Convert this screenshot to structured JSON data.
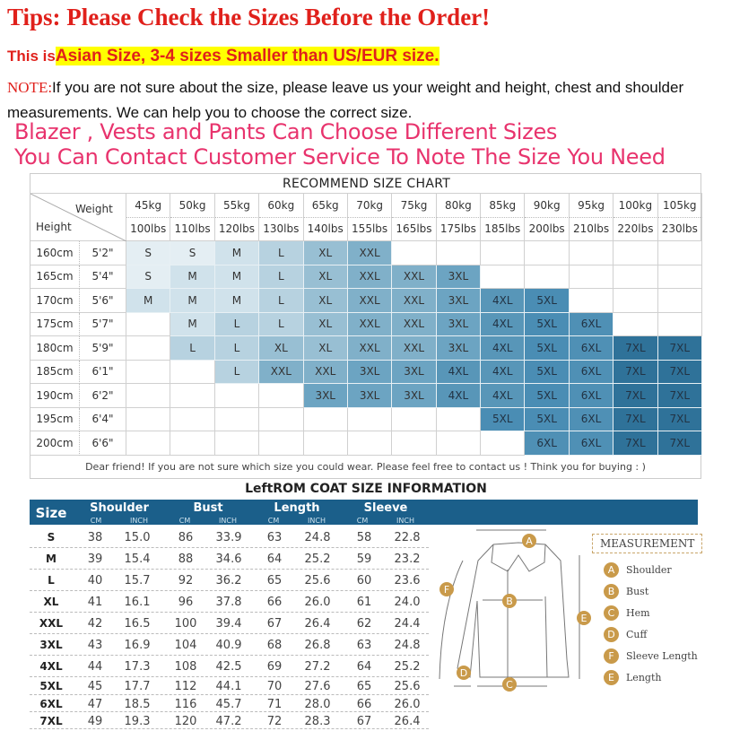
{
  "header": {
    "tips": "Tips: Please Check the Sizes Before the Order!",
    "asian_prefix": "This is",
    "asian_highlight": "Asian Size, 3-4 sizes Smaller than US/EUR size.",
    "note_label": "NOTE:",
    "note_text": "If you are not sure about the size, please leave us your weight and height, chest and shoulder measurements. We can help you to choose the correct size.",
    "pink_line_1": "Blazer , Vests and Pants Can Choose Different Sizes",
    "pink_line_2": "You Can Contact Customer Service To Note The Size You Need"
  },
  "colors": {
    "tips_red": "#e0201b",
    "highlight": "#ffff00",
    "pink": "#e8336d",
    "coat_header": "#1b5f8a",
    "badge": "#c99a4a"
  },
  "recommend": {
    "title": "RECOMMEND SIZE CHART",
    "weight_label": "Weight",
    "height_label": "Height",
    "kg": [
      "45kg",
      "50kg",
      "55kg",
      "60kg",
      "65kg",
      "70kg",
      "75kg",
      "80kg",
      "85kg",
      "90kg",
      "95kg",
      "100kg",
      "105kg"
    ],
    "lbs": [
      "100lbs",
      "110lbs",
      "120lbs",
      "130lbs",
      "140lbs",
      "155lbs",
      "165lbs",
      "175lbs",
      "185lbs",
      "200lbs",
      "210lbs",
      "220lbs",
      "230lbs"
    ],
    "rows": [
      {
        "cm": "160cm",
        "ft": "5'2\"",
        "sizes": [
          "S",
          "S",
          "M",
          "L",
          "XL",
          "XXL",
          "",
          "",
          "",
          "",
          "",
          "",
          ""
        ]
      },
      {
        "cm": "165cm",
        "ft": "5'4\"",
        "sizes": [
          "S",
          "M",
          "M",
          "L",
          "XL",
          "XXL",
          "XXL",
          "3XL",
          "",
          "",
          "",
          "",
          ""
        ]
      },
      {
        "cm": "170cm",
        "ft": "5'6\"",
        "sizes": [
          "M",
          "M",
          "M",
          "L",
          "XL",
          "XXL",
          "XXL",
          "3XL",
          "4XL",
          "5XL",
          "",
          "",
          ""
        ]
      },
      {
        "cm": "175cm",
        "ft": "5'7\"",
        "sizes": [
          "",
          "M",
          "L",
          "L",
          "XL",
          "XXL",
          "XXL",
          "3XL",
          "4XL",
          "5XL",
          "6XL",
          "",
          ""
        ]
      },
      {
        "cm": "180cm",
        "ft": "5'9\"",
        "sizes": [
          "",
          "L",
          "L",
          "XL",
          "XL",
          "XXL",
          "XXL",
          "3XL",
          "4XL",
          "5XL",
          "6XL",
          "7XL",
          "7XL"
        ]
      },
      {
        "cm": "185cm",
        "ft": "6'1\"",
        "sizes": [
          "",
          "",
          "L",
          "XXL",
          "XXL",
          "3XL",
          "3XL",
          "4XL",
          "4XL",
          "5XL",
          "6XL",
          "7XL",
          "7XL"
        ]
      },
      {
        "cm": "190cm",
        "ft": "6'2\"",
        "sizes": [
          "",
          "",
          "",
          "",
          "3XL",
          "3XL",
          "3XL",
          "4XL",
          "4XL",
          "5XL",
          "6XL",
          "7XL",
          "7XL"
        ]
      },
      {
        "cm": "195cm",
        "ft": "6'4\"",
        "sizes": [
          "",
          "",
          "",
          "",
          "",
          "",
          "",
          "",
          "5XL",
          "5XL",
          "6XL",
          "7XL",
          "7XL"
        ]
      },
      {
        "cm": "200cm",
        "ft": "6'6\"",
        "sizes": [
          "",
          "",
          "",
          "",
          "",
          "",
          "",
          "",
          "",
          "6XL",
          "6XL",
          "7XL",
          "7XL"
        ]
      }
    ],
    "size_colors": {
      "S": "#e4eef3",
      "M": "#d0e2eb",
      "L": "#b7d2e0",
      "XL": "#98bfd3",
      "XXL": "#80b0c9",
      "3XL": "#6ca4c2",
      "4XL": "#5896b8",
      "5XL": "#4a8db4",
      "6XL": "#4f90b5",
      "7XL": "#2f7299"
    },
    "footer": "Dear friend! If you are not sure which size you could wear. Please feel free to contact us ! Think you for buying : )"
  },
  "coat": {
    "title": "LeftROM COAT SIZE INFORMATION",
    "size_label": "Size",
    "groups": [
      "Shoulder",
      "Bust",
      "Length",
      "Sleeve"
    ],
    "unit_cm": "CM",
    "unit_inch": "INCH",
    "rows": [
      [
        "S",
        "38",
        "15.0",
        "86",
        "33.9",
        "63",
        "24.8",
        "58",
        "22.8"
      ],
      [
        "M",
        "39",
        "15.4",
        "88",
        "34.6",
        "64",
        "25.2",
        "59",
        "23.2"
      ],
      [
        "L",
        "40",
        "15.7",
        "92",
        "36.2",
        "65",
        "25.6",
        "60",
        "23.6"
      ],
      [
        "XL",
        "41",
        "16.1",
        "96",
        "37.8",
        "66",
        "26.0",
        "61",
        "24.0"
      ],
      [
        "XXL",
        "42",
        "16.5",
        "100",
        "39.4",
        "67",
        "26.4",
        "62",
        "24.4"
      ],
      [
        "3XL",
        "43",
        "16.9",
        "104",
        "40.9",
        "68",
        "26.8",
        "63",
        "24.8"
      ],
      [
        "4XL",
        "44",
        "17.3",
        "108",
        "42.5",
        "69",
        "27.2",
        "64",
        "25.2"
      ],
      [
        "5XL",
        "45",
        "17.7",
        "112",
        "44.1",
        "70",
        "27.6",
        "65",
        "25.6"
      ],
      [
        "6XL",
        "47",
        "18.5",
        "116",
        "45.7",
        "71",
        "28.0",
        "66",
        "26.0"
      ],
      [
        "7XL",
        "49",
        "19.3",
        "120",
        "47.2",
        "72",
        "28.3",
        "67",
        "26.4"
      ]
    ]
  },
  "measurement": {
    "title": "MEASUREMENT",
    "items": [
      {
        "letter": "A",
        "label": "Shoulder"
      },
      {
        "letter": "B",
        "label": "Bust"
      },
      {
        "letter": "C",
        "label": "Hem"
      },
      {
        "letter": "D",
        "label": "Cuff"
      },
      {
        "letter": "F",
        "label": "Sleeve Length"
      },
      {
        "letter": "E",
        "label": "Length"
      }
    ]
  }
}
